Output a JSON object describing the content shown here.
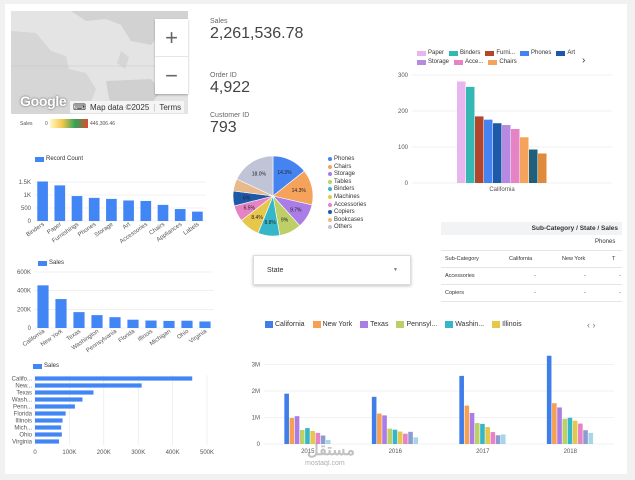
{
  "map": {
    "zoom_in": "+",
    "zoom_out": "−",
    "logo": "Google",
    "keyboard_icon": "keyboard-icon",
    "attribution": "Map data ©2025",
    "terms": "Terms",
    "legend_label": "Sales",
    "legend_min": "0",
    "legend_max": "446,306.46"
  },
  "scorecards": [
    {
      "label": "Sales",
      "value": "2,261,536.78"
    },
    {
      "label": "Order ID",
      "value": "4,922"
    },
    {
      "label": "Customer ID",
      "value": "793"
    }
  ],
  "colors": {
    "blue": "#4285f4",
    "california": "#3f7de8",
    "newyork": "#f7a054",
    "texas": "#a97ce6",
    "penn": "#bcd067",
    "wash": "#36b7c9",
    "illinois": "#e6c64b"
  },
  "top_bar": {
    "next_icon": "chevron-right-icon",
    "legend": [
      {
        "name": "Paper",
        "color": "#e9b5ef"
      },
      {
        "name": "Binders",
        "color": "#33b8b4"
      },
      {
        "name": "Furni...",
        "color": "#b2452c"
      },
      {
        "name": "Phones",
        "color": "#4584f0"
      },
      {
        "name": "Art",
        "color": "#1e58a8"
      },
      {
        "name": "Storage",
        "color": "#b58ae0"
      },
      {
        "name": "Acce...",
        "color": "#e583c4"
      },
      {
        "name": "Chairs",
        "color": "#f5a25b"
      }
    ]
  },
  "pie_legend": [
    {
      "name": "Phones",
      "color": "#4584f0"
    },
    {
      "name": "Chairs",
      "color": "#f5a25b"
    },
    {
      "name": "Storage",
      "color": "#a97ce6"
    },
    {
      "name": "Tables",
      "color": "#bcd067"
    },
    {
      "name": "Binders",
      "color": "#36b7c9"
    },
    {
      "name": "Machines",
      "color": "#e6c64b"
    },
    {
      "name": "Accessories",
      "color": "#e583c4"
    },
    {
      "name": "Copiers",
      "color": "#1e58a8"
    },
    {
      "name": "Bookcases",
      "color": "#e8b98a"
    },
    {
      "name": "Others",
      "color": "#c0c4d6"
    }
  ],
  "table": {
    "title": "Sub-Category / State / Sales",
    "group_header": "Phones",
    "columns": [
      "Sub-Category",
      "California",
      "New York",
      "T"
    ],
    "rows": [
      {
        "name": "Accessories",
        "c1": "-",
        "c2": "-",
        "c3": "-"
      },
      {
        "name": "Copiers",
        "c1": "-",
        "c2": "-",
        "c3": "-"
      }
    ]
  },
  "state_filter": {
    "label": "State",
    "caret": "▼"
  },
  "bottom_legend": {
    "items": [
      {
        "name": "California",
        "color": "#3f7de8"
      },
      {
        "name": "New York",
        "color": "#f7a054"
      },
      {
        "name": "Texas",
        "color": "#a97ce6"
      },
      {
        "name": "Pennsyl...",
        "color": "#bcd067"
      },
      {
        "name": "Washin...",
        "color": "#36b7c9"
      },
      {
        "name": "Illinois",
        "color": "#e6c64b"
      }
    ],
    "pager": "‹ ›"
  },
  "watermark": {
    "arabic": "مستقل",
    "latin": "mostaql.com"
  },
  "chart_data": [
    {
      "id": "record-count",
      "type": "bar",
      "title": "Record Count",
      "legend": "Record Count",
      "categories": [
        "Binders",
        "Paper",
        "Furnishings",
        "Phones",
        "Storage",
        "Art",
        "Accessories",
        "Chairs",
        "Appliances",
        "Labels"
      ],
      "values": [
        1520,
        1370,
        960,
        890,
        850,
        790,
        770,
        620,
        460,
        360
      ],
      "ylim": [
        0,
        2000
      ],
      "yticks": [
        0,
        500,
        1000,
        1500
      ],
      "ytick_labels": [
        "0",
        "500",
        "1K",
        "1.5K"
      ]
    },
    {
      "id": "sales-by-state",
      "type": "bar",
      "title": "Sales",
      "legend": "Sales",
      "categories": [
        "California",
        "New York",
        "Texas",
        "Washington",
        "Pennsylvania",
        "Florida",
        "Illinois",
        "Michigan",
        "Ohio",
        "Virginia"
      ],
      "values": [
        457000,
        310000,
        170000,
        138000,
        116000,
        89000,
        80000,
        76000,
        78000,
        70000
      ],
      "ylim": [
        0,
        600000
      ],
      "yticks": [
        0,
        200000,
        400000,
        600000
      ],
      "ytick_labels": [
        "0",
        "200K",
        "400K",
        "600K"
      ]
    },
    {
      "id": "sales-by-state-horizontal",
      "type": "bar",
      "title": "Sales",
      "legend": "Sales",
      "categories": [
        "Califo...",
        "New...",
        "Texas",
        "Wash...",
        "Penn...",
        "Florida",
        "Illinois",
        "Mich...",
        "Ohio",
        "Virginia"
      ],
      "values": [
        457000,
        310000,
        170000,
        138000,
        116000,
        89000,
        80000,
        76000,
        78000,
        70000
      ],
      "xlim": [
        0,
        500000
      ],
      "xticks": [
        0,
        100000,
        200000,
        300000,
        400000,
        500000
      ],
      "xtick_labels": [
        "0",
        "100K",
        "200K",
        "300K",
        "400K",
        "500K"
      ]
    },
    {
      "id": "subcategory-california",
      "type": "bar",
      "category": "California",
      "series": [
        {
          "name": "Paper",
          "value": 282
        },
        {
          "name": "Binders",
          "value": 267
        },
        {
          "name": "Furnishings",
          "value": 185
        },
        {
          "name": "Phones",
          "value": 176
        },
        {
          "name": "Art",
          "value": 166
        },
        {
          "name": "Storage",
          "value": 161
        },
        {
          "name": "Accessories",
          "value": 150
        },
        {
          "name": "Chairs",
          "value": 127
        },
        {
          "name": "Appliances",
          "value": 93
        },
        {
          "name": "Labels",
          "value": 82
        }
      ],
      "ylim": [
        0,
        300
      ],
      "yticks": [
        0,
        100,
        200,
        300
      ],
      "ytick_labels": [
        "0",
        "100",
        "200",
        "300"
      ]
    },
    {
      "id": "sales-pie",
      "type": "pie",
      "slices": [
        {
          "name": "Phones",
          "value": 14.3,
          "label": "14.3%"
        },
        {
          "name": "Chairs",
          "value": 14.3,
          "label": "14.3%"
        },
        {
          "name": "Storage",
          "value": 9.7,
          "label": "9.7%"
        },
        {
          "name": "Tables",
          "value": 9.0,
          "label": "9%"
        },
        {
          "name": "Binders",
          "value": 8.8,
          "label": "8.8%"
        },
        {
          "name": "Machines",
          "value": 8.4,
          "label": "8.4%"
        },
        {
          "name": "Accessories",
          "value": 6.5,
          "label": "6.5%"
        },
        {
          "name": "Copiers",
          "value": 6.0,
          "label": "6%"
        },
        {
          "name": "Bookcases",
          "value": 5.0,
          "label": ""
        },
        {
          "name": "Others",
          "value": 18.0,
          "label": "18.0%"
        }
      ]
    },
    {
      "id": "sales-by-year-state",
      "type": "bar",
      "categories": [
        "2015",
        "2016",
        "2017",
        "2018"
      ],
      "series": [
        {
          "name": "California",
          "values": [
            1900000,
            1780000,
            2570000,
            3330000
          ]
        },
        {
          "name": "New York",
          "values": [
            980000,
            1150000,
            1450000,
            1540000
          ]
        },
        {
          "name": "Texas",
          "values": [
            1050000,
            1080000,
            1170000,
            1380000
          ]
        },
        {
          "name": "Pennsylvania",
          "values": [
            530000,
            580000,
            790000,
            950000
          ]
        },
        {
          "name": "Washington",
          "values": [
            600000,
            540000,
            760000,
            990000
          ]
        },
        {
          "name": "Illinois",
          "values": [
            490000,
            470000,
            640000,
            880000
          ]
        },
        {
          "name": "Others A",
          "values": [
            420000,
            390000,
            450000,
            770000
          ]
        },
        {
          "name": "Others B",
          "values": [
            320000,
            460000,
            330000,
            520000
          ]
        },
        {
          "name": "Others C",
          "values": [
            150000,
            250000,
            360000,
            420000
          ]
        }
      ],
      "series_colors": [
        "#3f7de8",
        "#f7a054",
        "#a97ce6",
        "#bcd067",
        "#36b7c9",
        "#e6c64b",
        "#e583c4",
        "#8e9bd0",
        "#a7d4e6"
      ],
      "ylim": [
        0,
        4000000
      ],
      "yticks": [
        0,
        1000000,
        2000000,
        3000000
      ],
      "ytick_labels": [
        "0",
        "1M",
        "2M",
        "3M"
      ]
    }
  ]
}
